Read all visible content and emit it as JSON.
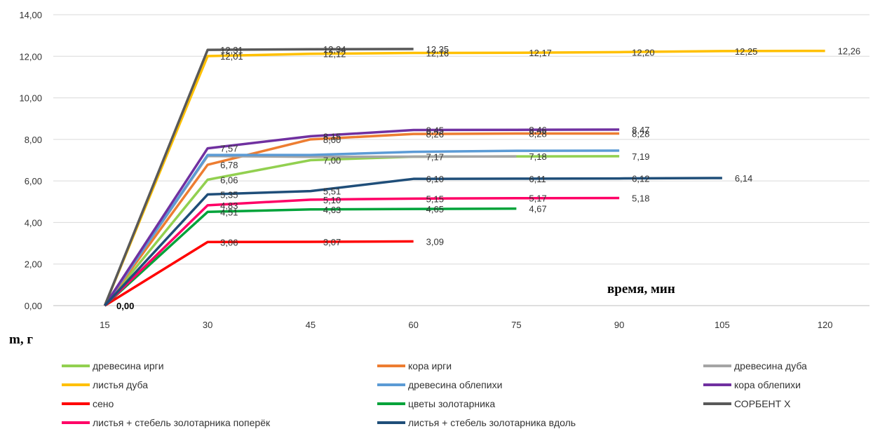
{
  "chart_data": {
    "type": "line",
    "xlabel": "время, мин",
    "ylabel": "m, г",
    "x": [
      15,
      30,
      45,
      60,
      75,
      90,
      105,
      120
    ],
    "ylim": [
      0,
      14
    ],
    "yticks": [
      "0,00",
      "2,00",
      "4,00",
      "6,00",
      "8,00",
      "10,00",
      "12,00",
      "14,00"
    ],
    "xticks": [
      "15",
      "30",
      "45",
      "60",
      "75",
      "90",
      "105",
      "120"
    ],
    "grid": "horizontal",
    "legend_position": "bottom",
    "zero_label": "0,00",
    "series": [
      {
        "name": "древесина ирги",
        "color": "#92d050",
        "values": [
          0,
          6.06,
          7.0,
          7.17,
          7.18,
          7.19,
          null,
          null
        ],
        "labels": [
          "",
          "6,06",
          "7,00",
          "7,17",
          "7,18",
          "7,19",
          "",
          ""
        ]
      },
      {
        "name": "кора ирги",
        "color": "#ed7d31",
        "values": [
          0,
          6.78,
          8.0,
          8.26,
          8.28,
          8.28,
          null,
          null
        ],
        "labels": [
          "",
          "6,78",
          "8,00",
          "8,26",
          "8,28",
          "8,28",
          "",
          ""
        ]
      },
      {
        "name": "древесина дуба",
        "color": "#a5a5a5",
        "values": [
          0,
          7.2,
          7.16,
          7.17,
          7.18,
          null,
          null,
          null
        ],
        "labels": [
          "",
          "",
          "",
          "",
          "",
          "",
          "",
          ""
        ]
      },
      {
        "name": "листья дуба",
        "color": "#ffc000",
        "values": [
          0,
          12.01,
          12.12,
          12.16,
          12.17,
          12.2,
          12.25,
          12.26
        ],
        "labels": [
          "",
          "12,01",
          "12,12",
          "12,16",
          "12,17",
          "12,20",
          "12,25",
          "12,26"
        ]
      },
      {
        "name": "древесина облепихи",
        "color": "#5b9bd5",
        "values": [
          0,
          7.25,
          7.25,
          7.4,
          7.45,
          7.46,
          null,
          null
        ],
        "labels": [
          "",
          "",
          "",
          "",
          "",
          "",
          "",
          ""
        ]
      },
      {
        "name": "кора облепихи",
        "color": "#7030a0",
        "values": [
          0,
          7.57,
          8.15,
          8.45,
          8.46,
          8.47,
          null,
          null
        ],
        "labels": [
          "",
          "7,57",
          "8,15",
          "8,45",
          "8,46",
          "8,47",
          "",
          ""
        ]
      },
      {
        "name": "сено",
        "color": "#ff0000",
        "values": [
          0,
          3.06,
          3.07,
          3.09,
          null,
          null,
          null,
          null
        ],
        "labels": [
          "",
          "3,06",
          "3,07",
          "3,09",
          "",
          "",
          "",
          ""
        ]
      },
      {
        "name": "цветы золотарника",
        "color": "#00a33a",
        "values": [
          0,
          4.51,
          4.63,
          4.65,
          4.67,
          null,
          null,
          null
        ],
        "labels": [
          "",
          "4,51",
          "4,63",
          "4,65",
          "4,67",
          "",
          "",
          ""
        ]
      },
      {
        "name": "СОРБЕНТ Х",
        "color": "#595959",
        "values": [
          0,
          12.31,
          12.34,
          12.35,
          null,
          null,
          null,
          null
        ],
        "labels": [
          "",
          "12,31",
          "12,34",
          "12,35",
          "",
          "",
          "",
          ""
        ]
      },
      {
        "name": "листья + стебель золотарника поперёк",
        "color": "#ff0066",
        "values": [
          0,
          4.83,
          5.1,
          5.15,
          5.17,
          5.18,
          null,
          null
        ],
        "labels": [
          "",
          "4,83",
          "5,10",
          "5,15",
          "5,17",
          "5,18",
          "",
          ""
        ]
      },
      {
        "name": "листья + стебель золотарника вдоль",
        "color": "#1f4e79",
        "values": [
          0,
          5.35,
          5.51,
          6.1,
          6.11,
          6.12,
          6.14,
          null
        ],
        "labels": [
          "",
          "5,35",
          "5,51",
          "6,10",
          "6,11",
          "6,12",
          "6,14",
          ""
        ]
      }
    ]
  }
}
